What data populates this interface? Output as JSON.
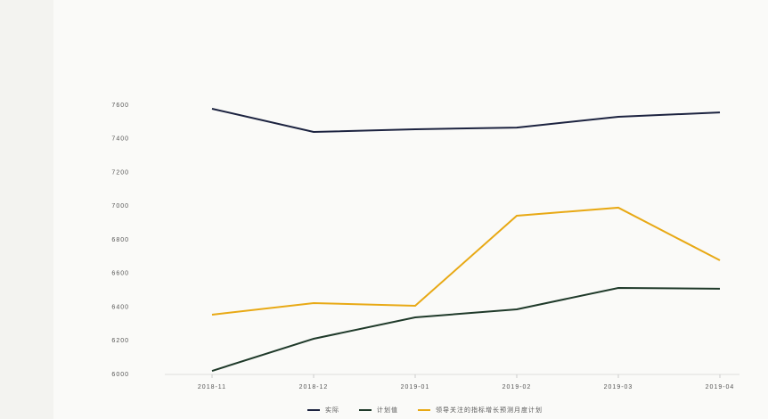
{
  "chart_data": {
    "type": "line",
    "categories": [
      "2018-11",
      "2018-12",
      "2019-01",
      "2019-02",
      "2019-03",
      "2019-04"
    ],
    "series": [
      {
        "name": "实际",
        "color": "#1c2340",
        "values": [
          7579,
          7441,
          7457,
          7467,
          7531,
          7557
        ]
      },
      {
        "name": "计划值",
        "color": "#1f3a2a",
        "values": [
          6021,
          6212,
          6339,
          6387,
          6514,
          6509
        ]
      },
      {
        "name": "领导关注的指标增长预测月度计划",
        "color": "#e8a915",
        "values": [
          6355,
          6424,
          6408,
          6943,
          6991,
          6678
        ]
      }
    ],
    "ylim": [
      6000,
      7600
    ],
    "yticks": [
      6000,
      6200,
      6400,
      6600,
      6800,
      7000,
      7200,
      7400,
      7600
    ],
    "legend": "bottom"
  }
}
